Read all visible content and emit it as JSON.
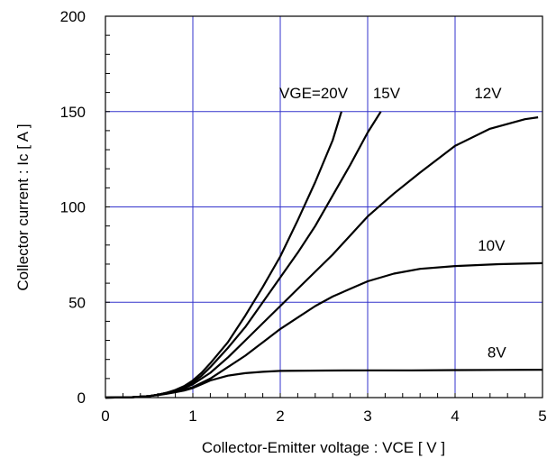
{
  "chart_data": {
    "type": "line",
    "title": "",
    "xlabel": "Collector-Emitter voltage : VCE [ V ]",
    "ylabel": "Collector current : Ic [ A ]",
    "xlim": [
      0,
      5
    ],
    "ylim": [
      0,
      200
    ],
    "x_ticks": [
      0,
      1,
      2,
      3,
      4,
      5
    ],
    "y_ticks": [
      0,
      50,
      100,
      150,
      200
    ],
    "x_minor_step": 0.2,
    "y_minor_step": 10,
    "grid": true,
    "grid_color": "#3333cc",
    "line_color": "#000000",
    "series": [
      {
        "name": "VGE=20V",
        "x": [
          0,
          0.3,
          0.5,
          0.6,
          0.7,
          0.8,
          0.9,
          1.0,
          1.1,
          1.2,
          1.4,
          1.6,
          1.8,
          2.0,
          2.2,
          2.4,
          2.6,
          2.7
        ],
        "y": [
          0,
          0.2,
          0.8,
          1.5,
          2.5,
          4,
          6,
          9,
          13,
          18,
          29,
          43,
          58,
          74,
          93,
          113,
          135,
          150
        ]
      },
      {
        "name": "15V",
        "x": [
          0,
          0.3,
          0.5,
          0.6,
          0.7,
          0.8,
          0.9,
          1.0,
          1.1,
          1.2,
          1.4,
          1.6,
          1.8,
          2.0,
          2.2,
          2.4,
          2.6,
          2.8,
          3.0,
          3.15
        ],
        "y": [
          0,
          0.2,
          0.8,
          1.5,
          2.5,
          3.8,
          5.5,
          8,
          11.5,
          16,
          26,
          37,
          50,
          63,
          76,
          90,
          106,
          122,
          139,
          150
        ]
      },
      {
        "name": "12V",
        "x": [
          0,
          0.3,
          0.5,
          0.6,
          0.7,
          0.8,
          0.9,
          1.0,
          1.2,
          1.4,
          1.6,
          1.8,
          2.0,
          2.2,
          2.4,
          2.6,
          2.8,
          3.0,
          3.3,
          3.6,
          4.0,
          4.4,
          4.8,
          4.95
        ],
        "y": [
          0,
          0.2,
          0.8,
          1.5,
          2.5,
          3.5,
          5,
          7,
          13,
          21,
          30,
          39,
          48,
          57,
          66,
          75,
          85,
          95,
          107,
          118,
          132,
          141,
          146,
          147
        ]
      },
      {
        "name": "10V",
        "x": [
          0,
          0.3,
          0.5,
          0.6,
          0.7,
          0.8,
          0.9,
          1.0,
          1.2,
          1.4,
          1.6,
          1.8,
          2.0,
          2.2,
          2.4,
          2.6,
          2.8,
          3.0,
          3.3,
          3.6,
          4.0,
          4.5,
          5.0
        ],
        "y": [
          0,
          0.2,
          0.8,
          1.5,
          2.3,
          3.2,
          4.2,
          5.5,
          10,
          16,
          22,
          29,
          36,
          42,
          48,
          53,
          57,
          61,
          65,
          67.5,
          69,
          70,
          70.5
        ]
      },
      {
        "name": "8V",
        "x": [
          0,
          0.3,
          0.5,
          0.6,
          0.7,
          0.8,
          0.9,
          1.0,
          1.1,
          1.2,
          1.4,
          1.6,
          1.8,
          2.0,
          2.5,
          3.0,
          3.5,
          4.0,
          4.5,
          5.0
        ],
        "y": [
          0,
          0.2,
          0.8,
          1.3,
          2,
          2.8,
          3.7,
          5,
          7,
          9,
          11.5,
          12.8,
          13.5,
          14,
          14.2,
          14.3,
          14.3,
          14.4,
          14.5,
          14.6
        ]
      }
    ]
  }
}
